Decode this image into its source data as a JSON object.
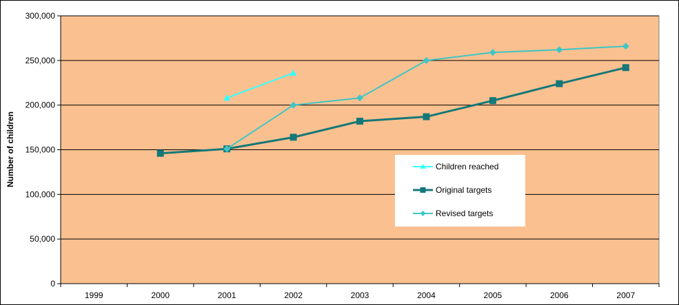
{
  "chart_data": {
    "type": "line",
    "categories": [
      "1999",
      "2000",
      "2001",
      "2002",
      "2003",
      "2004",
      "2005",
      "2006",
      "2007"
    ],
    "ylabel": "Number of children",
    "ylim": [
      0,
      300000
    ],
    "yticks": [
      0,
      50000,
      100000,
      150000,
      200000,
      250000,
      300000
    ],
    "ytick_labels": [
      "0",
      "50,000",
      "100,000",
      "150,000",
      "200,000",
      "250,000",
      "300,000"
    ],
    "grid": "horizontal",
    "plot_background": "#FAC090",
    "legend_position": "center-right",
    "series": [
      {
        "name": "Children reached",
        "color": "#33FFFF",
        "marker": "triangle",
        "values": [
          null,
          null,
          208000,
          236000,
          null,
          null,
          null,
          null,
          null
        ]
      },
      {
        "name": "Original targets",
        "color": "#147878",
        "marker": "square",
        "values": [
          null,
          146000,
          151000,
          164000,
          182000,
          187000,
          205000,
          224000,
          242000
        ]
      },
      {
        "name": "Revised targets",
        "color": "#3DC6C6",
        "marker": "diamond",
        "values": [
          null,
          null,
          151000,
          200000,
          208000,
          250000,
          259000,
          262000,
          266000
        ]
      }
    ]
  }
}
